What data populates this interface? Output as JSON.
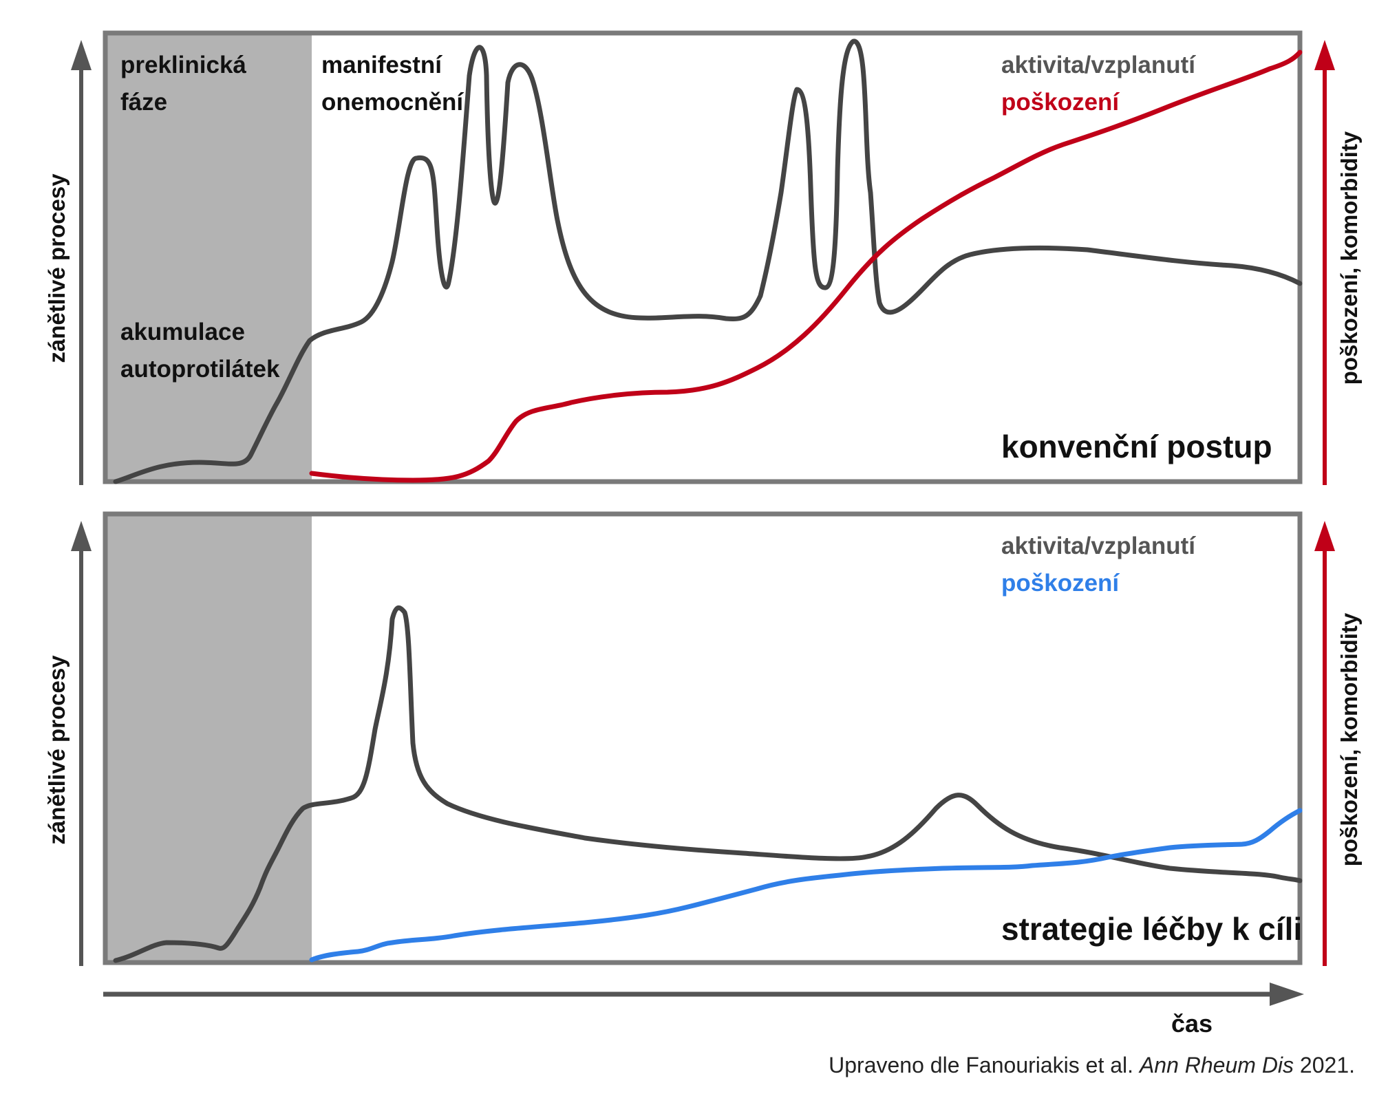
{
  "colors": {
    "frame": "#7a7a7a",
    "preclinical_shade": "#b3b3b3",
    "activity_line": "#444444",
    "damage_conventional": "#c00018",
    "damage_target": "#2f7fe8",
    "axis_dark": "#555555",
    "axis_red": "#c00018",
    "text": "#111111"
  },
  "top_panel": {
    "label_phase": [
      "preklinická",
      "fáze"
    ],
    "label_manifest": [
      "manifestní",
      "onemocnění"
    ],
    "label_autoantibodies": [
      "akumulace",
      "autoprotilátek"
    ],
    "legend_activity": "aktivita/vzplanutí",
    "legend_damage": "poškození",
    "strategy_title": "konvenční postup",
    "left_axis_label": "zánětlivé procesy",
    "right_axis_label": "poškození, komorbidity"
  },
  "bottom_panel": {
    "legend_activity": "aktivita/vzplanutí",
    "legend_damage": "poškození",
    "strategy_title": "strategie léčby k cíli",
    "left_axis_label": "zánětlivé procesy",
    "right_axis_label": "poškození, komorbidity"
  },
  "time_axis_label": "čas",
  "citation": {
    "prefix": "Upraveno dle Fanouriakis et al. ",
    "journal": "Ann Rheum Dis",
    "suffix": " 2021."
  }
}
